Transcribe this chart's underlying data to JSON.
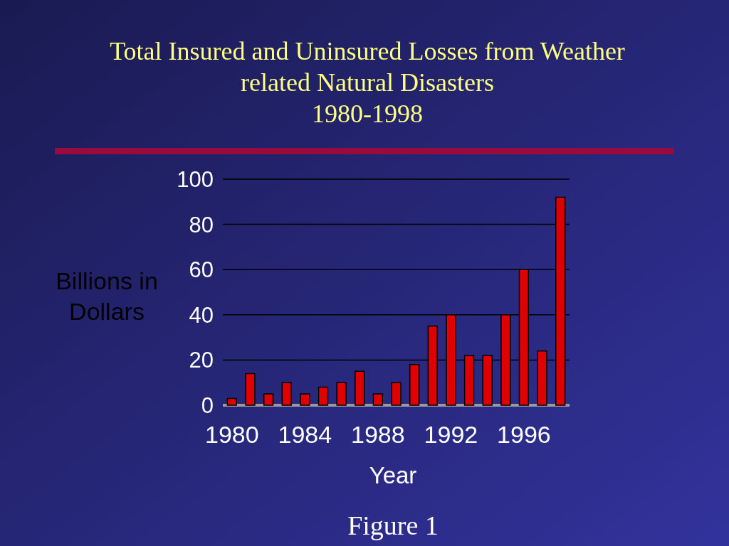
{
  "chart_data": {
    "type": "bar",
    "title": "Total Insured and Uninsured Losses from Weather related Natural Disasters",
    "subtitle": "1980-1998",
    "xlabel": "Year",
    "ylabel": "Billions in Dollars",
    "categories": [
      "1980",
      null,
      null,
      null,
      "1984",
      null,
      null,
      null,
      "1988",
      null,
      null,
      null,
      "1992",
      null,
      null,
      null,
      "1996",
      null,
      null
    ],
    "values": [
      3,
      14,
      5,
      10,
      5,
      8,
      10,
      15,
      5,
      10,
      18,
      35,
      40,
      22,
      22,
      40,
      60,
      24,
      92
    ],
    "color": "#e00000",
    "ylim": [
      0,
      100
    ],
    "yticks": [
      0,
      20,
      40,
      60,
      80,
      100
    ],
    "grid": "y",
    "annotations": [
      "Figure 1"
    ]
  }
}
